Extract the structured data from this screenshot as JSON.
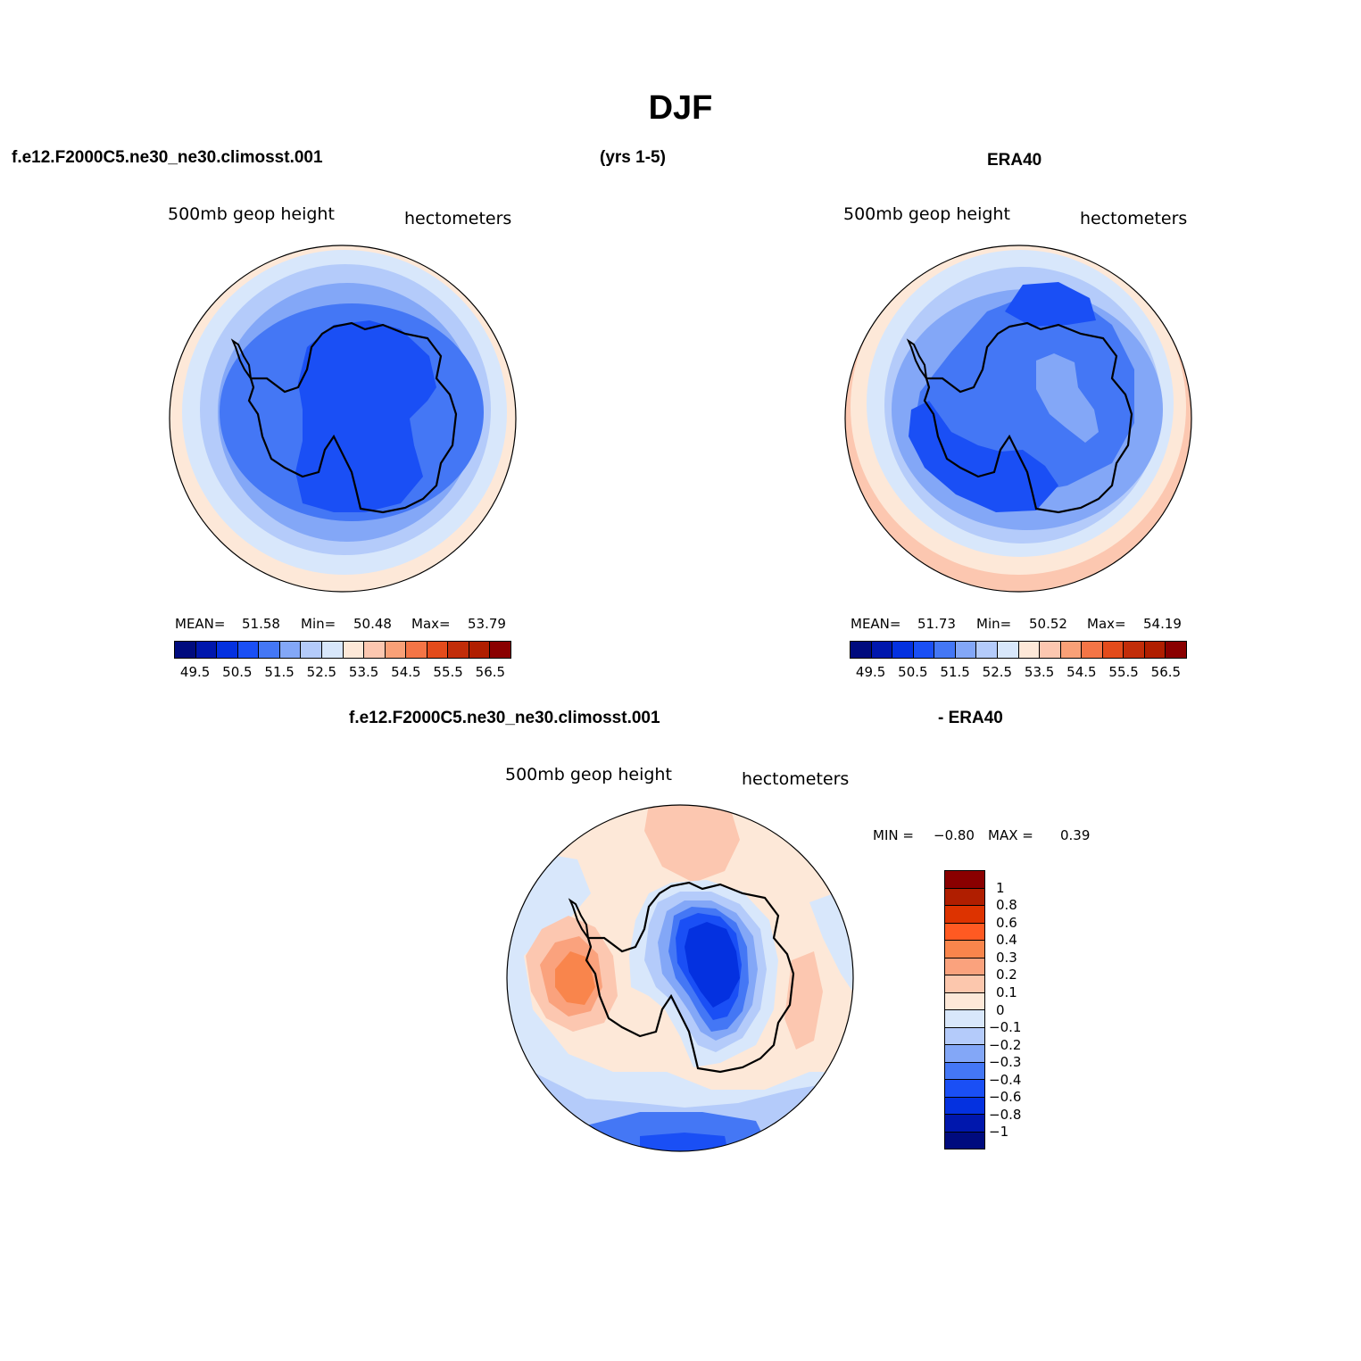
{
  "title": "DJF",
  "header": {
    "case_name": "f.e12.F2000C5.ne30_ne30.climosst.001",
    "years": "(yrs 1-5)",
    "reference": "ERA40"
  },
  "panels": {
    "model": {
      "variable": "500mb geop height",
      "units": "hectometers",
      "mean_label": "MEAN=",
      "mean": "51.58",
      "min_label": "Min=",
      "min": "50.48",
      "max_label": "Max=",
      "max": "53.79"
    },
    "obs": {
      "variable": "500mb geop height",
      "units": "hectometers",
      "mean_label": "MEAN=",
      "mean": "51.73",
      "min_label": "Min=",
      "min": "50.52",
      "max_label": "Max=",
      "max": "54.19"
    },
    "diff": {
      "title_left": "f.e12.F2000C5.ne30_ne30.climosst.001",
      "title_right": "- ERA40",
      "variable": "500mb geop height",
      "units": "hectometers",
      "min_label": "MIN =",
      "min": "−0.80",
      "max_label": "MAX =",
      "max": "0.39"
    }
  },
  "colorbar_abs": {
    "ticks": [
      "49.5",
      "50.5",
      "51.5",
      "52.5",
      "53.5",
      "54.5",
      "55.5",
      "56.5"
    ],
    "colors": [
      "#000b7e",
      "#0017ad",
      "#0431e0",
      "#1a4ff5",
      "#4477f5",
      "#83a7f7",
      "#b4cbfa",
      "#d8e7fb",
      "#fde8d8",
      "#fcc7b0",
      "#f9a077",
      "#f47546",
      "#e34b1b",
      "#c22d09",
      "#b01e00",
      "#8a0000"
    ]
  },
  "colorbar_diff": {
    "labels": [
      "1",
      "0.8",
      "0.6",
      "0.4",
      "0.3",
      "0.2",
      "0.1",
      "0",
      "−0.1",
      "−0.2",
      "−0.3",
      "−0.4",
      "−0.6",
      "−0.8",
      "−1"
    ],
    "colors": [
      "#8a0000",
      "#b01e00",
      "#dd3300",
      "#ff5a22",
      "#f9854c",
      "#faa27d",
      "#fcc7ad",
      "#fde8d8",
      "#d8e7fb",
      "#b4cbfa",
      "#83a7f7",
      "#4477f5",
      "#1a4ff5",
      "#0431e0",
      "#0017ad",
      "#000b7e"
    ]
  },
  "chart_data": {
    "type": "heatmap",
    "title": "DJF",
    "projection": "south polar stereographic",
    "variable": "500mb geop height",
    "units": "hectometers",
    "panels": [
      {
        "name": "f.e12.F2000C5.ne30_ne30.climosst.001",
        "mean": 51.58,
        "min": 50.48,
        "max": 53.79
      },
      {
        "name": "ERA40",
        "mean": 51.73,
        "min": 50.52,
        "max": 54.19
      },
      {
        "name": "f.e12.F2000C5.ne30_ne30.climosst.001 - ERA40",
        "min": -0.8,
        "max": 0.39
      }
    ],
    "abs_levels": [
      49.5,
      50.0,
      50.5,
      51.0,
      51.5,
      52.0,
      52.5,
      53.0,
      53.5,
      54.0,
      54.5,
      55.0,
      55.5,
      56.0,
      56.5
    ],
    "diff_levels": [
      -1,
      -0.8,
      -0.6,
      -0.4,
      -0.3,
      -0.2,
      -0.1,
      0,
      0.1,
      0.2,
      0.3,
      0.4,
      0.6,
      0.8,
      1
    ]
  }
}
